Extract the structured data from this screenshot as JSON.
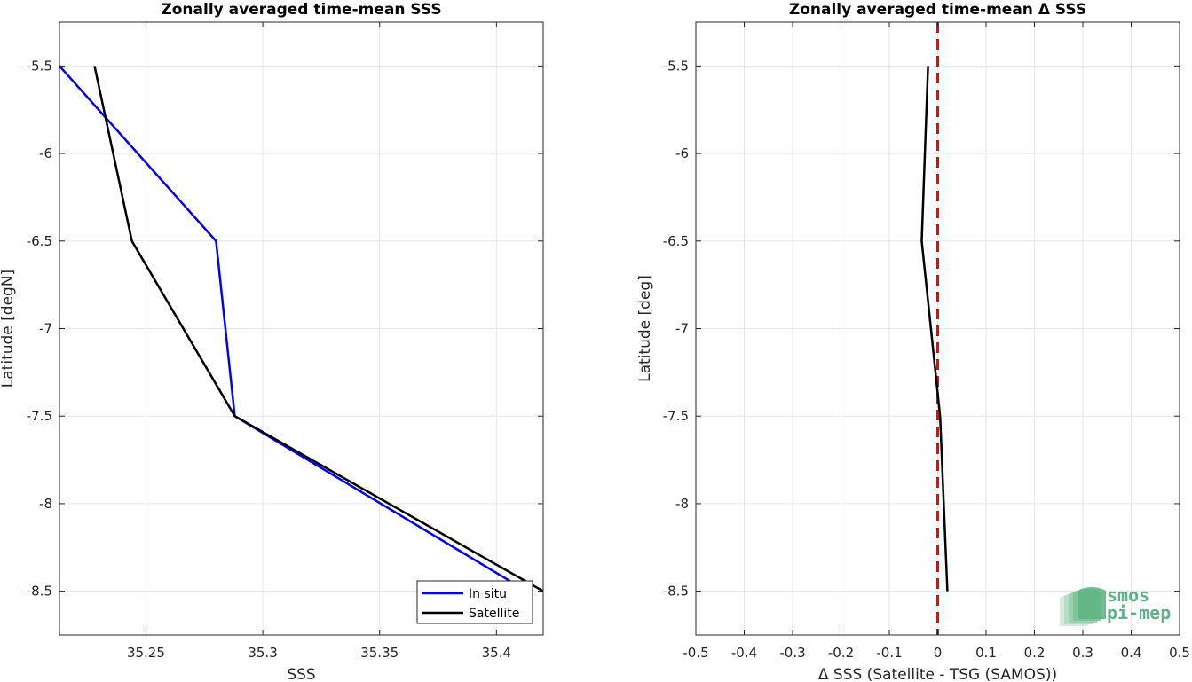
{
  "chart_data": [
    {
      "type": "line",
      "title": "Zonally averaged time-mean SSS",
      "xlabel": "SSS",
      "ylabel": "Latitude [degN]",
      "xlim": [
        35.213,
        35.42
      ],
      "ylim": [
        -8.75,
        -5.25
      ],
      "xticks": [
        "35.25",
        "35.3",
        "35.35",
        "35.4"
      ],
      "xtick_values": [
        35.25,
        35.3,
        35.35,
        35.4
      ],
      "yticks": [
        "-5.5",
        "-6",
        "-6.5",
        "-7",
        "-7.5",
        "-8",
        "-8.5"
      ],
      "ytick_values": [
        -5.5,
        -6,
        -6.5,
        -7,
        -7.5,
        -8,
        -8.5
      ],
      "grid": true,
      "legend": "bottom-right",
      "series": [
        {
          "name": "In situ",
          "color": "#0000ff",
          "x": [
            35.213,
            35.28,
            35.288,
            35.413
          ],
          "y": [
            -5.5,
            -6.5,
            -7.5,
            -8.5
          ]
        },
        {
          "name": "Satellite",
          "color": "#000000",
          "x": [
            35.228,
            35.244,
            35.288,
            35.42
          ],
          "y": [
            -5.5,
            -6.5,
            -7.5,
            -8.5
          ]
        }
      ]
    },
    {
      "type": "line",
      "title": "Zonally averaged time-mean Δ SSS",
      "xlabel": "Δ SSS (Satellite - TSG (SAMOS))",
      "ylabel": "Latitude [deg]",
      "xlim": [
        -0.5,
        0.5
      ],
      "ylim": [
        -8.75,
        -5.25
      ],
      "xticks": [
        "-0.5",
        "-0.4",
        "-0.3",
        "-0.2",
        "-0.1",
        "0",
        "0.1",
        "0.2",
        "0.3",
        "0.4",
        "0.5"
      ],
      "xtick_values": [
        -0.5,
        -0.4,
        -0.3,
        -0.2,
        -0.1,
        0,
        0.1,
        0.2,
        0.3,
        0.4,
        0.5
      ],
      "yticks": [
        "-5.5",
        "-6",
        "-6.5",
        "-7",
        "-7.5",
        "-8",
        "-8.5"
      ],
      "ytick_values": [
        -5.5,
        -6,
        -6.5,
        -7,
        -7.5,
        -8,
        -8.5
      ],
      "grid": true,
      "reference_line": {
        "x": 0,
        "color": "#ff0000",
        "style": "dashed"
      },
      "series": [
        {
          "color": "#000000",
          "x": [
            -0.02,
            -0.033,
            0.005,
            0.02
          ],
          "y": [
            -5.5,
            -6.5,
            -7.5,
            -8.5
          ]
        }
      ]
    }
  ],
  "logo": {
    "line1": "smos",
    "line2": "pi-mep",
    "color": "#5fb387"
  }
}
